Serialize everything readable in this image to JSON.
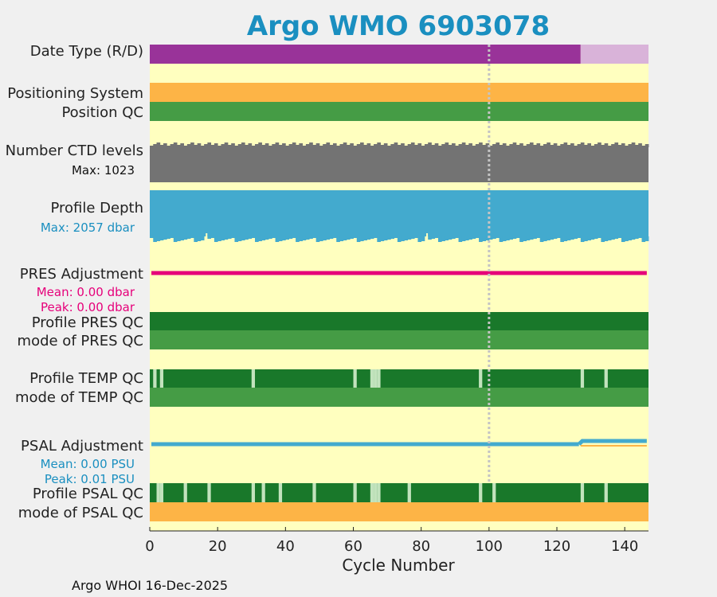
{
  "chart_data": {
    "type": "heatmap",
    "title": "Argo WMO 6903078",
    "xlabel": "Cycle Number",
    "xlim": [
      0,
      147
    ],
    "xticks": [
      "0",
      "20",
      "40",
      "60",
      "80",
      "100",
      "120",
      "140"
    ],
    "xtick_values": [
      0,
      20,
      40,
      60,
      80,
      100,
      120,
      140
    ],
    "ref_cycle": 100,
    "n_cycles": 147,
    "colors": {
      "background": "#ffffbf",
      "realtime": "#993399",
      "delayed": "#d9b3d9",
      "orange": "#fdb446",
      "qc_good": "#459c45",
      "qc_dark": "#19782a",
      "qc_light": "#c2e3bd",
      "gray": "#737373",
      "blue": "#43aace",
      "pink": "#e6007a",
      "title": "#1a8fc0"
    },
    "rows": [
      {
        "id": "date-type",
        "label": "Date Type (R/D)",
        "realtime_until": 127
      },
      {
        "id": "positioning-system",
        "label": "Positioning System"
      },
      {
        "id": "position-qc",
        "label": "Position QC"
      },
      {
        "id": "ctd-levels",
        "label": "Number CTD levels",
        "sublabel": "Max: 1023",
        "max": 1023
      },
      {
        "id": "profile-depth",
        "label": "Profile Depth",
        "sublabel": "Max: 2057 dbar",
        "max": 2057
      },
      {
        "id": "pres-adjustment",
        "label": "PRES Adjustment",
        "sublabel": "Mean: 0.00 dbar",
        "sublabel2": "Peak: 0.00 dbar",
        "mean": 0.0,
        "peak": 0.0
      },
      {
        "id": "profile-pres-qc",
        "label": "Profile PRES QC"
      },
      {
        "id": "mode-pres-qc",
        "label": "mode of PRES QC"
      },
      {
        "id": "profile-temp-qc",
        "label": "Profile TEMP QC",
        "light_cycles": [
          1,
          3,
          30,
          60,
          65,
          66,
          67,
          97,
          127,
          134
        ]
      },
      {
        "id": "mode-temp-qc",
        "label": "mode of TEMP QC"
      },
      {
        "id": "psal-adjustment",
        "label": "PSAL Adjustment",
        "sublabel": "Mean: 0.00 PSU",
        "sublabel2": "Peak: 0.01 PSU",
        "mean": 0.0,
        "peak": 0.01
      },
      {
        "id": "profile-psal-qc",
        "label": "Profile PSAL QC",
        "light_cycles": [
          2,
          3,
          10,
          17,
          30,
          33,
          38,
          48,
          60,
          65,
          66,
          67,
          76,
          97,
          101,
          127,
          134
        ]
      },
      {
        "id": "mode-psal-qc",
        "label": "mode of PSAL QC"
      }
    ]
  },
  "footer": "Argo WHOI 16-Dec-2025"
}
